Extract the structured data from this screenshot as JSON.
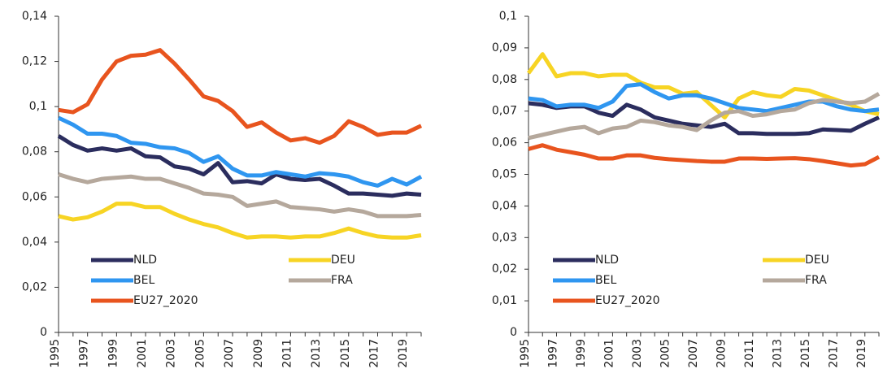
{
  "chart_data": [
    {
      "type": "line",
      "legend": "bottom",
      "categories": [
        "1995",
        null,
        "1997",
        null,
        "1999",
        null,
        "2001",
        null,
        "2003",
        null,
        "2005",
        null,
        "2007",
        null,
        "2009",
        null,
        "2011",
        null,
        "2013",
        null,
        "2015",
        null,
        "2017",
        null,
        "2019",
        null
      ],
      "ylim": [
        0,
        0.14
      ],
      "yticks": [
        0,
        {
          "value": 0.02,
          "label": "0,02"
        },
        {
          "value": 0.04,
          "label": "0,04"
        },
        {
          "value": 0.06,
          "label": "0,06"
        },
        {
          "value": 0.08,
          "label": "0,08"
        },
        {
          "value": 0.1,
          "label": "0,1"
        },
        {
          "value": 0.12,
          "label": "0,12"
        },
        {
          "value": 0.14,
          "label": "0,14"
        }
      ],
      "series": [
        {
          "name": "NLD",
          "color": "#2b2d5e",
          "values": [
            0.087,
            0.083,
            0.0805,
            0.0815,
            0.0805,
            0.0815,
            0.078,
            0.0775,
            0.0735,
            0.0725,
            0.07,
            0.075,
            0.0665,
            0.067,
            0.066,
            0.07,
            0.068,
            0.0675,
            0.068,
            0.065,
            0.0615,
            0.0615,
            0.061,
            0.0605,
            0.0615,
            0.061
          ]
        },
        {
          "name": "DEU",
          "color": "#f7d424",
          "values": [
            0.0515,
            0.05,
            0.051,
            0.0535,
            0.057,
            0.057,
            0.0555,
            0.0555,
            0.0525,
            0.05,
            0.048,
            0.0465,
            0.044,
            0.042,
            0.0425,
            0.0425,
            0.042,
            0.0425,
            0.0425,
            0.044,
            0.046,
            0.044,
            0.0425,
            0.042,
            0.042,
            0.043
          ]
        },
        {
          "name": "BEL",
          "color": "#2f96f0",
          "values": [
            0.095,
            0.092,
            0.088,
            0.088,
            0.087,
            0.084,
            0.0835,
            0.082,
            0.0815,
            0.0795,
            0.0755,
            0.078,
            0.0725,
            0.0695,
            0.0695,
            0.071,
            0.07,
            0.069,
            0.0705,
            0.07,
            0.069,
            0.0665,
            0.065,
            0.068,
            0.0655,
            0.069
          ]
        },
        {
          "name": "FRA",
          "color": "#b5a89c",
          "values": [
            0.07,
            0.068,
            0.0665,
            0.068,
            0.0685,
            0.069,
            0.068,
            0.068,
            0.066,
            0.064,
            0.0615,
            0.061,
            0.06,
            0.056,
            0.057,
            0.058,
            0.0555,
            0.055,
            0.0545,
            0.0535,
            0.0545,
            0.0535,
            0.0515,
            0.0515,
            0.0515,
            0.052
          ]
        },
        {
          "name": "EU27_2020",
          "color": "#e8541e",
          "values": [
            0.0985,
            0.0975,
            0.101,
            0.112,
            0.12,
            0.1225,
            0.123,
            0.125,
            0.119,
            0.112,
            0.1045,
            0.1025,
            0.098,
            0.091,
            0.093,
            0.0885,
            0.085,
            0.086,
            0.084,
            0.087,
            0.0935,
            0.091,
            0.0875,
            0.0885,
            0.0885,
            0.0915
          ]
        }
      ]
    },
    {
      "type": "line",
      "legend": "bottom",
      "categories": [
        "1995",
        null,
        "1997",
        null,
        "1999",
        null,
        "2001",
        null,
        "2003",
        null,
        "2005",
        null,
        "2007",
        null,
        "2009",
        null,
        "2011",
        null,
        "2013",
        null,
        "2015",
        null,
        "2017",
        null,
        "2019",
        null
      ],
      "ylim": [
        0,
        0.1
      ],
      "yticks": [
        0,
        {
          "value": 0.01,
          "label": "0,01"
        },
        {
          "value": 0.02,
          "label": "0,02"
        },
        {
          "value": 0.03,
          "label": "0,03"
        },
        {
          "value": 0.04,
          "label": "0,04"
        },
        {
          "value": 0.05,
          "label": "0,05"
        },
        {
          "value": 0.06,
          "label": "0,06"
        },
        {
          "value": 0.07,
          "label": "0,07"
        },
        {
          "value": 0.08,
          "label": "0,08"
        },
        {
          "value": 0.09,
          "label": "0,09"
        },
        {
          "value": 0.1,
          "label": "0,1"
        }
      ],
      "series": [
        {
          "name": "NLD",
          "color": "#2b2d5e",
          "values": [
            0.0725,
            0.072,
            0.071,
            0.0715,
            0.0715,
            0.0695,
            0.0685,
            0.072,
            0.0705,
            0.068,
            0.067,
            0.066,
            0.0655,
            0.065,
            0.066,
            0.063,
            0.063,
            0.0628,
            0.0628,
            0.0628,
            0.063,
            0.0642,
            0.064,
            0.0638,
            0.066,
            0.068
          ]
        },
        {
          "name": "DEU",
          "color": "#f7d424",
          "values": [
            0.082,
            0.088,
            0.081,
            0.082,
            0.082,
            0.081,
            0.0815,
            0.0815,
            0.079,
            0.0775,
            0.0775,
            0.0755,
            0.076,
            0.072,
            0.068,
            0.074,
            0.076,
            0.075,
            0.0745,
            0.077,
            0.0765,
            0.075,
            0.0735,
            0.072,
            0.07,
            0.069
          ]
        },
        {
          "name": "BEL",
          "color": "#2f96f0",
          "values": [
            0.074,
            0.0735,
            0.0715,
            0.072,
            0.072,
            0.071,
            0.073,
            0.078,
            0.0785,
            0.076,
            0.074,
            0.075,
            0.075,
            0.074,
            0.0725,
            0.071,
            0.0705,
            0.07,
            0.071,
            0.072,
            0.073,
            0.073,
            0.0715,
            0.0705,
            0.07,
            0.0705
          ]
        },
        {
          "name": "FRA",
          "color": "#b5a89c",
          "values": [
            0.0615,
            0.0625,
            0.0635,
            0.0645,
            0.065,
            0.063,
            0.0645,
            0.065,
            0.067,
            0.0665,
            0.0655,
            0.065,
            0.064,
            0.067,
            0.0695,
            0.07,
            0.0685,
            0.069,
            0.07,
            0.0705,
            0.0725,
            0.0735,
            0.073,
            0.0725,
            0.073,
            0.0755
          ]
        },
        {
          "name": "EU27_2020",
          "color": "#e8541e",
          "values": [
            0.058,
            0.0592,
            0.0578,
            0.057,
            0.0562,
            0.055,
            0.055,
            0.056,
            0.056,
            0.0552,
            0.0548,
            0.0545,
            0.0542,
            0.054,
            0.054,
            0.055,
            0.055,
            0.0549,
            0.055,
            0.0551,
            0.0548,
            0.0542,
            0.0535,
            0.0528,
            0.0532,
            0.0555
          ]
        }
      ]
    }
  ]
}
